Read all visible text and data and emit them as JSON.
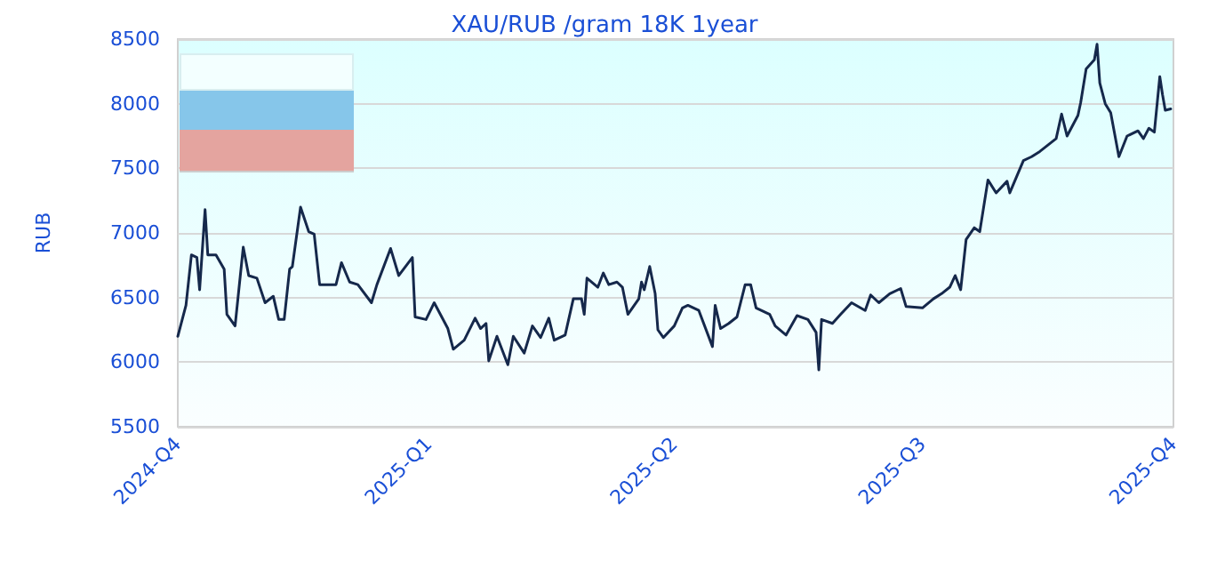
{
  "chart_data": {
    "type": "line",
    "title": "XAU/RUB /gram 18K 1year",
    "ylabel": "RUB",
    "x": [
      "2024-10-01",
      "2024-10-04",
      "2024-10-06",
      "2024-10-08",
      "2024-10-09",
      "2024-10-11",
      "2024-10-12",
      "2024-10-15",
      "2024-10-18",
      "2024-10-19",
      "2024-10-22",
      "2024-10-25",
      "2024-10-27",
      "2024-10-30",
      "2024-11-02",
      "2024-11-05",
      "2024-11-07",
      "2024-11-09",
      "2024-11-11",
      "2024-11-12",
      "2024-11-15",
      "2024-11-18",
      "2024-11-20",
      "2024-11-22",
      "2024-11-28",
      "2024-11-30",
      "2024-12-03",
      "2024-12-06",
      "2024-12-11",
      "2024-12-13",
      "2024-12-18",
      "2024-12-21",
      "2024-12-26",
      "2024-12-27",
      "2024-12-31",
      "2025-01-03",
      "2025-01-08",
      "2025-01-10",
      "2025-01-14",
      "2025-01-18",
      "2025-01-20",
      "2025-01-22",
      "2025-01-23",
      "2025-01-26",
      "2025-01-30",
      "2025-02-01",
      "2025-02-05",
      "2025-02-08",
      "2025-02-11",
      "2025-02-14",
      "2025-02-16",
      "2025-02-20",
      "2025-02-23",
      "2025-02-26",
      "2025-02-27",
      "2025-02-28",
      "2025-03-04",
      "2025-03-06",
      "2025-03-08",
      "2025-03-11",
      "2025-03-13",
      "2025-03-15",
      "2025-03-19",
      "2025-03-20",
      "2025-03-21",
      "2025-03-23",
      "2025-03-25",
      "2025-03-26",
      "2025-03-28",
      "2025-04-01",
      "2025-04-04",
      "2025-04-06",
      "2025-04-10",
      "2025-04-15",
      "2025-04-16",
      "2025-04-18",
      "2025-04-21",
      "2025-04-24",
      "2025-04-27",
      "2025-04-29",
      "2025-05-01",
      "2025-05-06",
      "2025-05-08",
      "2025-05-12",
      "2025-05-16",
      "2025-05-20",
      "2025-05-23",
      "2025-05-24",
      "2025-05-25",
      "2025-05-29",
      "2025-06-01",
      "2025-06-05",
      "2025-06-10",
      "2025-06-12",
      "2025-06-15",
      "2025-06-19",
      "2025-06-23",
      "2025-06-25",
      "2025-07-01",
      "2025-07-05",
      "2025-07-08",
      "2025-07-11",
      "2025-07-13",
      "2025-07-15",
      "2025-07-17",
      "2025-07-20",
      "2025-07-22",
      "2025-07-25",
      "2025-07-28",
      "2025-08-01",
      "2025-08-02",
      "2025-08-07",
      "2025-08-10",
      "2025-08-13",
      "2025-08-19",
      "2025-08-21",
      "2025-08-23",
      "2025-08-27",
      "2025-08-28",
      "2025-08-30",
      "2025-09-02",
      "2025-09-03",
      "2025-09-04",
      "2025-09-06",
      "2025-09-08",
      "2025-09-11",
      "2025-09-14",
      "2025-09-18",
      "2025-09-20",
      "2025-09-22",
      "2025-09-24",
      "2025-09-26",
      "2025-09-27",
      "2025-09-28",
      "2025-09-30"
    ],
    "series": [
      {
        "color": "#15284b",
        "values": [
          6200,
          6440,
          6830,
          6810,
          6560,
          7180,
          6830,
          6830,
          6720,
          6370,
          6280,
          6890,
          6670,
          6650,
          6460,
          6510,
          6330,
          6330,
          6720,
          6740,
          7200,
          7010,
          6990,
          6600,
          6600,
          6770,
          6620,
          6600,
          6460,
          6600,
          6880,
          6670,
          6810,
          6350,
          6330,
          6460,
          6260,
          6100,
          6170,
          6340,
          6260,
          6300,
          6010,
          6200,
          5980,
          6200,
          6070,
          6280,
          6190,
          6340,
          6170,
          6210,
          6490,
          6490,
          6370,
          6650,
          6580,
          6690,
          6600,
          6620,
          6580,
          6370,
          6490,
          6620,
          6560,
          6740,
          6530,
          6250,
          6190,
          6280,
          6420,
          6440,
          6400,
          6120,
          6440,
          6260,
          6300,
          6350,
          6600,
          6600,
          6420,
          6370,
          6280,
          6210,
          6360,
          6330,
          6230,
          5940,
          6330,
          6300,
          6370,
          6460,
          6400,
          6520,
          6460,
          6530,
          6570,
          6430,
          6420,
          6490,
          6530,
          6580,
          6670,
          6560,
          6950,
          7040,
          7010,
          7410,
          7310,
          7400,
          7310,
          7560,
          7590,
          7630,
          7730,
          7920,
          7750,
          7910,
          8010,
          8270,
          8340,
          8460,
          8160,
          8000,
          7930,
          7590,
          7750,
          7790,
          7730,
          7810,
          7780,
          8210,
          8070,
          7950,
          7960
        ]
      }
    ],
    "xlim": [
      "2024-10-01",
      "2025-10-01"
    ],
    "xticks": [
      {
        "value": "2024-10-01",
        "label": "2024-Q4"
      },
      {
        "value": "2025-01-01",
        "label": "2025-Q1"
      },
      {
        "value": "2025-04-01",
        "label": "2025-Q2"
      },
      {
        "value": "2025-07-01",
        "label": "2025-Q3"
      },
      {
        "value": "2025-10-01",
        "label": "2025-Q4"
      }
    ],
    "ylim": [
      5500,
      8500
    ],
    "yticks": [
      5500,
      6000,
      6500,
      7000,
      7500,
      8000,
      8500
    ],
    "grid": "y",
    "marker": "none",
    "line_style": "solid"
  }
}
